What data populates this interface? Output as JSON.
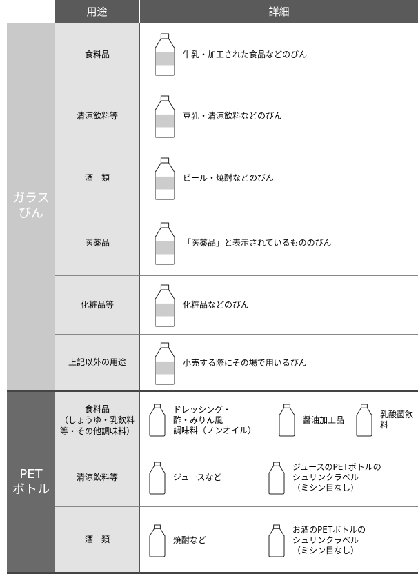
{
  "header": {
    "purpose": "用途",
    "detail": "詳細"
  },
  "groups": [
    {
      "label": [
        "ガラス",
        "びん"
      ],
      "rows": [
        {
          "purpose": [
            "食料品"
          ],
          "details": [
            {
              "lines": [
                "牛乳・加工された食品などのびん"
              ]
            }
          ]
        },
        {
          "purpose": [
            "清涼飲料等"
          ],
          "details": [
            {
              "lines": [
                "豆乳・清涼飲料などのびん"
              ]
            }
          ]
        },
        {
          "purpose": [
            "酒　類"
          ],
          "details": [
            {
              "lines": [
                "ビール・焼酎などのびん"
              ]
            }
          ]
        },
        {
          "purpose": [
            "医薬品"
          ],
          "details": [
            {
              "lines": [
                "「医薬品」と表示されているもののびん"
              ]
            }
          ]
        },
        {
          "purpose": [
            "化粧品等"
          ],
          "details": [
            {
              "lines": [
                "化粧品などのびん"
              ]
            }
          ]
        },
        {
          "purpose": [
            "上記以外の用途"
          ],
          "details": [
            {
              "lines": [
                "小売する際にその場で用いるびん"
              ]
            }
          ]
        }
      ]
    },
    {
      "label": [
        "PET",
        "ボトル"
      ],
      "rows": [
        {
          "purpose": [
            "食料品",
            "（しょうゆ・乳飲料",
            "等・その他調味料）"
          ],
          "details": [
            {
              "lines": [
                "ドレッシング・",
                "酢・みりん風",
                "調味料（ノンオイル）"
              ]
            },
            {
              "lines": [
                "醤油加工品"
              ]
            },
            {
              "lines": [
                "乳酸菌飲料"
              ]
            }
          ]
        },
        {
          "purpose": [
            "清涼飲料等"
          ],
          "details": [
            {
              "lines": [
                "ジュースなど"
              ]
            },
            {
              "lines": [
                "ジュースのPETボトルの",
                "シュリンクラベル",
                "（ミシン目なし）"
              ]
            }
          ]
        },
        {
          "purpose": [
            "酒　類"
          ],
          "details": [
            {
              "lines": [
                "焼酎など"
              ]
            },
            {
              "lines": [
                "お酒のPETボトルの",
                "シュリンクラベル",
                "（ミシン目なし）"
              ]
            }
          ]
        }
      ]
    }
  ]
}
